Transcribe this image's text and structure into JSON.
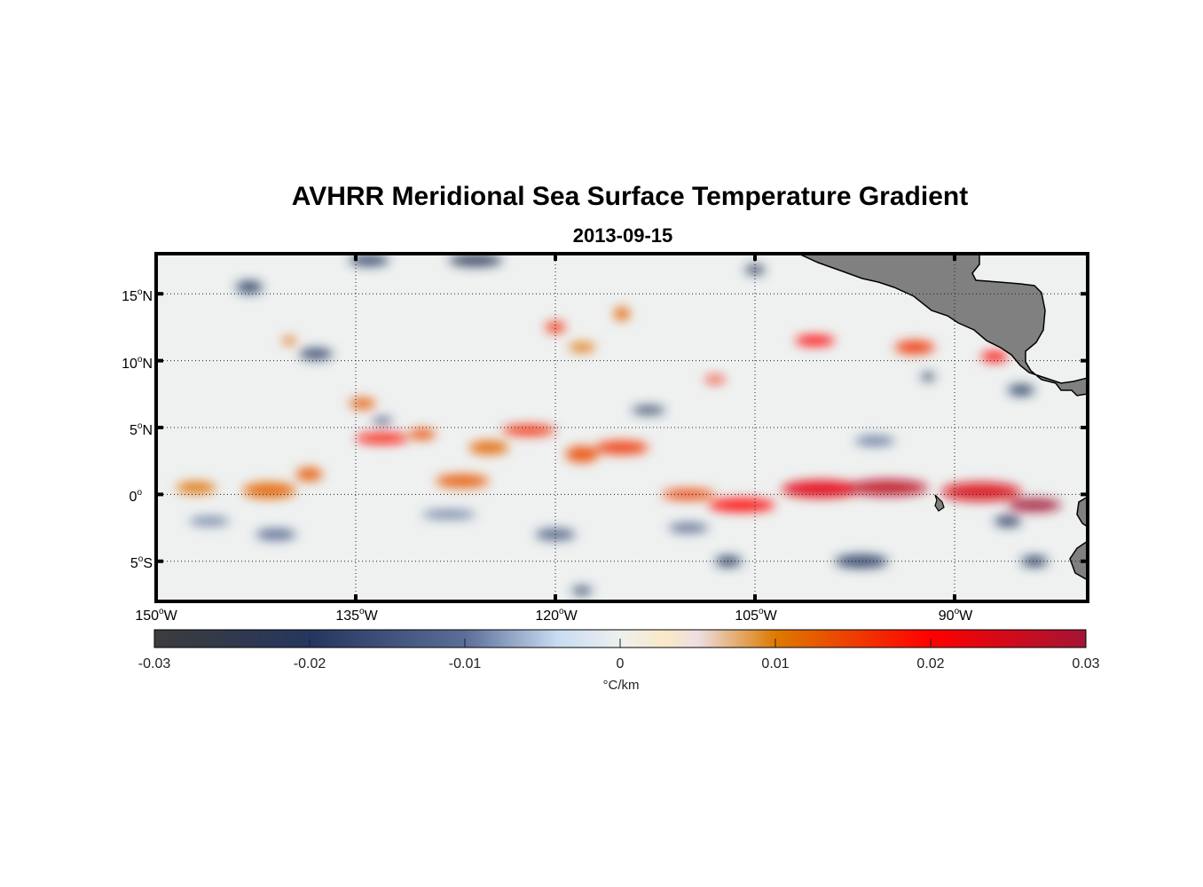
{
  "title": "AVHRR Meridional Sea Surface Temperature Gradient",
  "subtitle": "2013-09-15",
  "chart_data": {
    "type": "heatmap",
    "title": "AVHRR Meridional Sea Surface Temperature Gradient",
    "subtitle": "2013-09-15",
    "projection": "lon-lat",
    "lon_range": [
      -150,
      -80
    ],
    "lat_range": [
      -8,
      18
    ],
    "grid": true,
    "lat_ticks": [
      {
        "value": 15,
        "num": "15",
        "deg": "o",
        "hem": "N"
      },
      {
        "value": 10,
        "num": "10",
        "deg": "o",
        "hem": "N"
      },
      {
        "value": 5,
        "num": "5",
        "deg": "o",
        "hem": "N"
      },
      {
        "value": 0,
        "num": "0",
        "deg": "o",
        "hem": ""
      },
      {
        "value": -5,
        "num": "5",
        "deg": "o",
        "hem": "S"
      }
    ],
    "lon_ticks": [
      {
        "value": -150,
        "num": "150",
        "deg": "o",
        "hem": "W"
      },
      {
        "value": -135,
        "num": "135",
        "deg": "o",
        "hem": "W"
      },
      {
        "value": -120,
        "num": "120",
        "deg": "o",
        "hem": "W"
      },
      {
        "value": -105,
        "num": "105",
        "deg": "o",
        "hem": "W"
      },
      {
        "value": -90,
        "num": "90",
        "deg": "o",
        "hem": "W"
      }
    ],
    "colorbar": {
      "range": [
        -0.03,
        0.03
      ],
      "ticks": [
        "-0.03",
        "-0.02",
        "-0.01",
        "0",
        "0.01",
        "0.02",
        "0.03"
      ],
      "label": "°C/km",
      "placement": "bottom",
      "stops": [
        {
          "v": -0.03,
          "c": "#3c3c3c"
        },
        {
          "v": -0.02,
          "c": "#25365e"
        },
        {
          "v": -0.01,
          "c": "#5a6e98"
        },
        {
          "v": -0.004,
          "c": "#c8dcf2"
        },
        {
          "v": 0,
          "c": "#eef0ee"
        },
        {
          "v": 0.003,
          "c": "#fbe8c8"
        },
        {
          "v": 0.005,
          "c": "#ecdfe2"
        },
        {
          "v": 0.01,
          "c": "#dd7a00"
        },
        {
          "v": 0.02,
          "c": "#ff0000"
        },
        {
          "v": 0.03,
          "c": "#a31535"
        }
      ]
    },
    "features": [
      {
        "lon": -147,
        "lat": 0.5,
        "v": 0.011,
        "w": 3,
        "h": 0.9
      },
      {
        "lon": -141.5,
        "lat": 0.3,
        "v": 0.012,
        "w": 4,
        "h": 1.2
      },
      {
        "lon": -138.5,
        "lat": 1.5,
        "v": 0.013,
        "w": 2,
        "h": 1
      },
      {
        "lon": -133,
        "lat": 4.2,
        "v": 0.019,
        "w": 4,
        "h": 0.8
      },
      {
        "lon": -130,
        "lat": 4.5,
        "v": 0.014,
        "w": 2,
        "h": 0.8
      },
      {
        "lon": -127,
        "lat": 1,
        "v": 0.013,
        "w": 4,
        "h": 1
      },
      {
        "lon": -125,
        "lat": 3.5,
        "v": 0.012,
        "w": 3,
        "h": 1
      },
      {
        "lon": -122,
        "lat": 4.8,
        "v": 0.017,
        "w": 4,
        "h": 0.8
      },
      {
        "lon": -118,
        "lat": 3,
        "v": 0.014,
        "w": 2.5,
        "h": 1.2
      },
      {
        "lon": -115,
        "lat": 3.5,
        "v": 0.016,
        "w": 4,
        "h": 1
      },
      {
        "lon": -110,
        "lat": 0,
        "v": 0.015,
        "w": 4,
        "h": 0.8
      },
      {
        "lon": -106,
        "lat": -0.8,
        "v": 0.02,
        "w": 5,
        "h": 1
      },
      {
        "lon": -100,
        "lat": 0.4,
        "v": 0.023,
        "w": 6,
        "h": 1.3
      },
      {
        "lon": -95,
        "lat": 0.5,
        "v": 0.027,
        "w": 6,
        "h": 1.2
      },
      {
        "lon": -88,
        "lat": 0.2,
        "v": 0.024,
        "w": 6,
        "h": 1.4
      },
      {
        "lon": -84,
        "lat": -0.8,
        "v": 0.03,
        "w": 4,
        "h": 1
      },
      {
        "lon": -100.5,
        "lat": 11.5,
        "v": 0.02,
        "w": 3,
        "h": 0.8
      },
      {
        "lon": -93,
        "lat": 11,
        "v": 0.016,
        "w": 3,
        "h": 1
      },
      {
        "lon": -87,
        "lat": 10.3,
        "v": 0.02,
        "w": 2,
        "h": 0.8
      },
      {
        "lon": -120,
        "lat": 12.5,
        "v": 0.017,
        "w": 1.5,
        "h": 0.8
      },
      {
        "lon": -108,
        "lat": 8.6,
        "v": 0.018,
        "w": 1.5,
        "h": 0.5
      },
      {
        "lon": -115,
        "lat": 13.5,
        "v": 0.012,
        "w": 1.2,
        "h": 1
      },
      {
        "lon": -134.5,
        "lat": 6.8,
        "v": 0.013,
        "w": 2,
        "h": 0.8
      },
      {
        "lon": -140,
        "lat": 11.5,
        "v": 0.012,
        "w": 1,
        "h": 0.6
      },
      {
        "lon": -118,
        "lat": 11,
        "v": 0.011,
        "w": 2,
        "h": 0.7
      },
      {
        "lon": -133,
        "lat": 5.5,
        "v": -0.018,
        "w": 1.5,
        "h": 0.5
      },
      {
        "lon": -138,
        "lat": 10.5,
        "v": -0.02,
        "w": 2.5,
        "h": 0.8
      },
      {
        "lon": -143,
        "lat": 15.5,
        "v": -0.02,
        "w": 2,
        "h": 0.9
      },
      {
        "lon": -134,
        "lat": 17.5,
        "v": -0.02,
        "w": 3,
        "h": 0.8
      },
      {
        "lon": -126,
        "lat": 17.5,
        "v": -0.022,
        "w": 4,
        "h": 0.9
      },
      {
        "lon": -105,
        "lat": 16.8,
        "v": -0.022,
        "w": 1.5,
        "h": 0.7
      },
      {
        "lon": -113,
        "lat": 6.3,
        "v": -0.02,
        "w": 2.5,
        "h": 0.6
      },
      {
        "lon": -120,
        "lat": -3,
        "v": -0.015,
        "w": 3,
        "h": 0.8
      },
      {
        "lon": -107,
        "lat": -5,
        "v": -0.02,
        "w": 2,
        "h": 0.8
      },
      {
        "lon": -97,
        "lat": -5,
        "v": -0.019,
        "w": 4,
        "h": 1
      },
      {
        "lon": -118,
        "lat": -7.2,
        "v": -0.02,
        "w": 1.5,
        "h": 0.6
      },
      {
        "lon": -141,
        "lat": -3,
        "v": -0.013,
        "w": 3,
        "h": 0.8
      },
      {
        "lon": -146,
        "lat": -2,
        "v": -0.01,
        "w": 3,
        "h": 0.6
      },
      {
        "lon": -86,
        "lat": -2,
        "v": -0.02,
        "w": 2,
        "h": 0.8
      },
      {
        "lon": -84,
        "lat": -5,
        "v": -0.02,
        "w": 2,
        "h": 0.8
      },
      {
        "lon": -92,
        "lat": 8.8,
        "v": -0.02,
        "w": 1,
        "h": 0.6
      },
      {
        "lon": -85,
        "lat": 7.8,
        "v": -0.02,
        "w": 2,
        "h": 0.8
      },
      {
        "lon": -96,
        "lat": 4,
        "v": -0.01,
        "w": 3,
        "h": 0.7
      },
      {
        "lon": -128,
        "lat": -1.5,
        "v": -0.01,
        "w": 4,
        "h": 0.6
      },
      {
        "lon": -110,
        "lat": -2.5,
        "v": -0.012,
        "w": 3,
        "h": 0.7
      }
    ]
  }
}
